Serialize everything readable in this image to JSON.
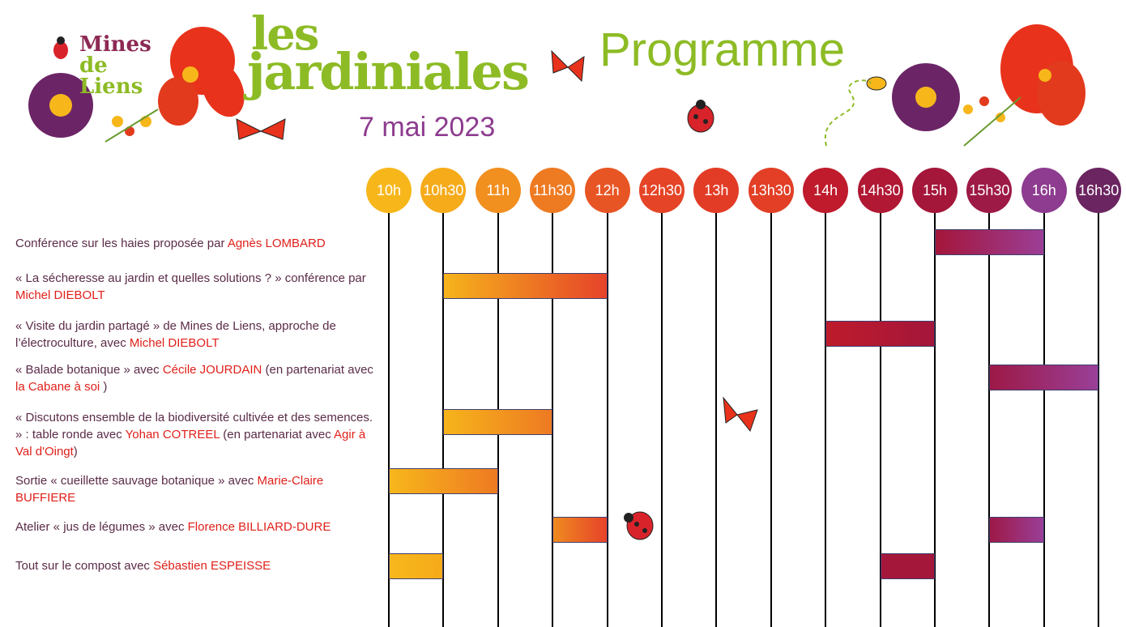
{
  "logo": {
    "text_lines": [
      "Mines",
      "de Liens"
    ]
  },
  "header": {
    "brand_top": "les",
    "brand_bottom": "jardiniales",
    "date": "7 mai 2023",
    "program_title": "Programme"
  },
  "colors": {
    "brand_green": "#8dbb25",
    "date_purple": "#8d3c8f",
    "highlight_red": "#e0201a",
    "text_dark": "#5b2b48"
  },
  "timeline": {
    "slots": [
      {
        "label": "10h",
        "color": "#f7b71b"
      },
      {
        "label": "10h30",
        "color": "#f6ab1a"
      },
      {
        "label": "11h",
        "color": "#f18f1f"
      },
      {
        "label": "11h30",
        "color": "#ee7a22"
      },
      {
        "label": "12h",
        "color": "#e85524"
      },
      {
        "label": "12h30",
        "color": "#e54426"
      },
      {
        "label": "13h",
        "color": "#e23c26"
      },
      {
        "label": "13h30",
        "color": "#e23f26"
      },
      {
        "label": "14h",
        "color": "#bf1b2c"
      },
      {
        "label": "14h30",
        "color": "#b01834"
      },
      {
        "label": "15h",
        "color": "#a4163a"
      },
      {
        "label": "15h30",
        "color": "#9d1946"
      },
      {
        "label": "16h",
        "color": "#8d3c8f"
      },
      {
        "label": "16h30",
        "color": "#6b2560"
      }
    ]
  },
  "activities": [
    {
      "parts": [
        {
          "text": "Conférence sur les haies proposée par "
        },
        {
          "text": "Agnès LOMBARD",
          "hl": true
        }
      ],
      "bars": [
        {
          "start": "15h",
          "end": "16h",
          "from": "#a4163a",
          "to": "#9c3e96"
        }
      ]
    },
    {
      "parts": [
        {
          "text": "« La sécheresse au jardin et quelles solutions ? » conférence par "
        },
        {
          "text": "Michel DIEBOLT",
          "hl": true
        }
      ],
      "bars": [
        {
          "start": "10h30",
          "end": "12h",
          "from": "#f6b41b",
          "to": "#e6432a"
        }
      ]
    },
    {
      "parts": [
        {
          "text": "« Visite du jardin partagé » de Mines de Liens, approche de l’électroculture, avec "
        },
        {
          "text": "Michel DIEBOLT",
          "hl": true
        }
      ],
      "bars": [
        {
          "start": "14h",
          "end": "15h",
          "from": "#be1b2b",
          "to": "#a3163b"
        }
      ]
    },
    {
      "parts": [
        {
          "text": "« Balade botanique » avec "
        },
        {
          "text": "Cécile JOURDAIN",
          "hl": true
        },
        {
          "text": " (en partenariat avec "
        },
        {
          "text": "la Cabane à soi",
          "hl": true
        },
        {
          "text": " )"
        }
      ],
      "bars": [
        {
          "start": "15h30",
          "end": "16h30",
          "from": "#9d1946",
          "to": "#9a3f98"
        }
      ]
    },
    {
      "parts": [
        {
          "text": "« Discutons ensemble de la biodiversité cultivée et des semences. » : table ronde avec "
        },
        {
          "text": "Yohan COTREEL",
          "hl": true
        },
        {
          "text": " (en partenariat avec "
        },
        {
          "text": "Agir à Val d'Oingt",
          "hl": true
        },
        {
          "text": ")"
        }
      ],
      "bars": [
        {
          "start": "10h30",
          "end": "11h30",
          "from": "#f6b41b",
          "to": "#ee7a22"
        }
      ]
    },
    {
      "parts": [
        {
          "text": "Sortie « cueillette sauvage botanique » avec "
        },
        {
          "text": "Marie-Claire BUFFIERE",
          "hl": true
        }
      ],
      "bars": [
        {
          "start": "10h",
          "end": "11h",
          "from": "#f7b71b",
          "to": "#ee7a22"
        }
      ]
    },
    {
      "parts": [
        {
          "text": "Atelier « jus de légumes » avec "
        },
        {
          "text": "Florence BILLIARD-DURE",
          "hl": true
        }
      ],
      "bars": [
        {
          "start": "11h30",
          "end": "12h",
          "from": "#ef8a1f",
          "to": "#e6432a"
        },
        {
          "start": "15h30",
          "end": "16h",
          "from": "#9d1946",
          "to": "#9a3f98"
        }
      ]
    },
    {
      "parts": [
        {
          "text": "Tout sur le compost avec "
        },
        {
          "text": "Sébastien ESPEISSE",
          "hl": true
        }
      ],
      "bars": [
        {
          "start": "10h",
          "end": "10h30",
          "from": "#f7b71b",
          "to": "#f6ab1a"
        },
        {
          "start": "14h30",
          "end": "15h",
          "from": "#a4163a",
          "to": "#a4163a"
        }
      ]
    }
  ]
}
